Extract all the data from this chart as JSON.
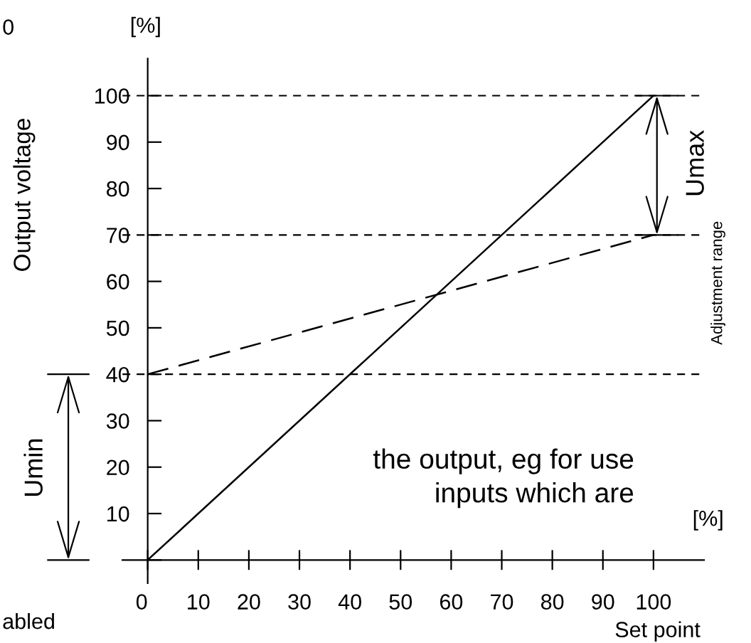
{
  "chart_data": {
    "type": "line",
    "xlabel": "Set point",
    "ylabel": "Output voltage",
    "xlim": [
      -5,
      110
    ],
    "ylim": [
      -5,
      108
    ],
    "xticks": [
      {
        "value": 0,
        "label": "0"
      },
      10,
      20,
      30,
      40,
      50,
      60,
      70,
      80,
      90,
      100
    ],
    "yticks": [
      {
        "value": 0,
        "label": null
      },
      10,
      20,
      30,
      40,
      50,
      60,
      70,
      80,
      90,
      100
    ],
    "x": [
      0,
      100
    ],
    "series": [
      {
        "color": "#000000",
        "values": [
          0,
          100
        ],
        "line_style": "solid"
      },
      {
        "color": "#000000",
        "values": [
          40,
          70
        ],
        "line_style": "dashed"
      }
    ],
    "ref_lines": [
      {
        "axis": "y",
        "value": 100,
        "color": "#000000",
        "line_style": "dashed"
      },
      {
        "axis": "y",
        "value": 70,
        "color": "#000000",
        "line_style": "dashed"
      },
      {
        "axis": "y",
        "value": 40,
        "color": "#000000",
        "line_style": "dashed"
      }
    ],
    "annotations": [
      "[%]",
      "[%]",
      "Adjustment range",
      "the output, eg for use\ninputs which are",
      "0",
      "abled",
      "Umax",
      "Umin"
    ],
    "grid": false,
    "legend": false
  }
}
